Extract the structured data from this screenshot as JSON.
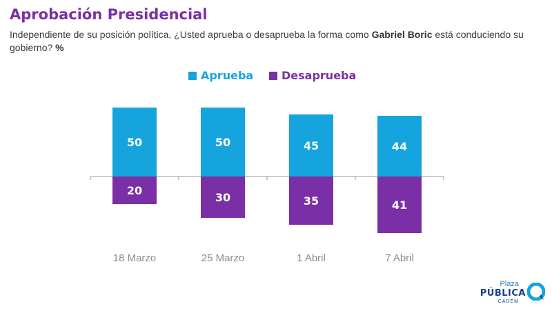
{
  "header": {
    "title": "Aprobación Presidencial",
    "subtitle_pre": "Independiente de su posición política, ¿Usted aprueba o desaprueba la forma como ",
    "subtitle_bold": "Gabriel Boric",
    "subtitle_post": " está conduciendo su gobierno? ",
    "subtitle_unit": "%"
  },
  "legend": {
    "approve_label": "Aprueba",
    "disapprove_label": "Desaprueba"
  },
  "colors": {
    "approve": "#16a4de",
    "disapprove": "#7b2fa6",
    "title": "#7b2fa6"
  },
  "logo": {
    "plaza": "Plaza",
    "publica": "PÚBLICA",
    "cadem": "CADEM"
  },
  "chart_data": {
    "type": "bar",
    "categories": [
      "18 Marzo",
      "25 Marzo",
      "1 Abril",
      "7 Abril"
    ],
    "series": [
      {
        "name": "Aprueba",
        "values": [
          50,
          50,
          45,
          44
        ]
      },
      {
        "name": "Desaprueba",
        "values": [
          20,
          30,
          35,
          41
        ]
      }
    ],
    "title": "Aprobación Presidencial",
    "xlabel": "",
    "ylabel": "",
    "grid": false,
    "legend_position": "top-center"
  }
}
